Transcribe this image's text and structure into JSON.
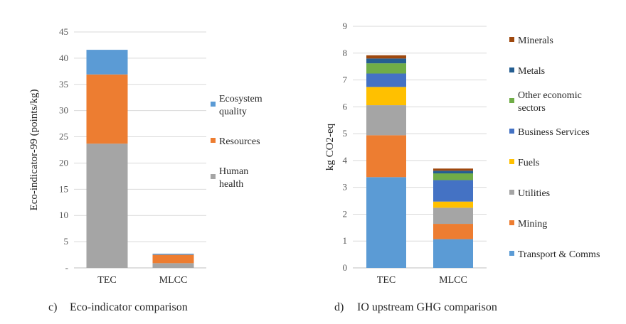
{
  "captions": {
    "left_label": "c)",
    "left_text": "Eco-indicator comparison",
    "right_label": "d)",
    "right_text": "IO upstream GHG comparison"
  },
  "chart_data": [
    {
      "type": "bar",
      "stacked": true,
      "categories": [
        "TEC",
        "MLCC"
      ],
      "series": [
        {
          "name": "Human health",
          "color": "#a5a5a5",
          "values": [
            23.7,
            0.9
          ]
        },
        {
          "name": "Resources",
          "color": "#ed7d31",
          "values": [
            13.2,
            1.6
          ]
        },
        {
          "name": "Ecosystem quality",
          "color": "#5b9bd5",
          "values": [
            4.7,
            0.2
          ]
        }
      ],
      "title": "",
      "xlabel": "",
      "ylabel": "Eco-indicator-99 (points/kg)",
      "ylim": [
        0,
        45
      ],
      "yticks": [
        "-",
        "5",
        "10",
        "15",
        "20",
        "25",
        "30",
        "35",
        "40",
        "45"
      ],
      "grid": true,
      "legend_position": "right",
      "legend_order": [
        "Ecosystem quality",
        "Resources",
        "Human health"
      ],
      "legend_labels": [
        [
          "Ecosystem",
          "quality"
        ],
        [
          "Resources"
        ],
        [
          "Human",
          "health"
        ]
      ]
    },
    {
      "type": "bar",
      "stacked": true,
      "categories": [
        "TEC",
        "MLCC"
      ],
      "series": [
        {
          "name": "Transport & Comms",
          "color": "#5b9bd5",
          "values": [
            3.38,
            1.07
          ]
        },
        {
          "name": "Mining",
          "color": "#ed7d31",
          "values": [
            1.56,
            0.57
          ]
        },
        {
          "name": "Utilities",
          "color": "#a5a5a5",
          "values": [
            1.12,
            0.6
          ]
        },
        {
          "name": "Fuels",
          "color": "#ffc000",
          "values": [
            0.68,
            0.23
          ]
        },
        {
          "name": "Business Services",
          "color": "#4472c4",
          "values": [
            0.5,
            0.8
          ]
        },
        {
          "name": "Other economic sectors",
          "color": "#70ad47",
          "values": [
            0.38,
            0.25
          ]
        },
        {
          "name": "Metals",
          "color": "#255e91",
          "values": [
            0.18,
            0.1
          ]
        },
        {
          "name": "Minerals",
          "color": "#9e480e",
          "values": [
            0.12,
            0.08
          ]
        }
      ],
      "title": "",
      "xlabel": "",
      "ylabel": "kg CO2-eq",
      "ylim": [
        0,
        9
      ],
      "yticks": [
        "0",
        "1",
        "2",
        "3",
        "4",
        "5",
        "6",
        "7",
        "8",
        "9"
      ],
      "grid": true,
      "legend_position": "right",
      "legend_order": [
        "Minerals",
        "Metals",
        "Other economic sectors",
        "Business Services",
        "Fuels",
        "Utilities",
        "Mining",
        "Transport & Comms"
      ],
      "legend_labels": [
        [
          "Minerals"
        ],
        [
          "Metals"
        ],
        [
          "Other economic",
          "sectors"
        ],
        [
          "Business Services"
        ],
        [
          "Fuels"
        ],
        [
          "Utilities"
        ],
        [
          "Mining"
        ],
        [
          "Transport & Comms"
        ]
      ]
    }
  ]
}
